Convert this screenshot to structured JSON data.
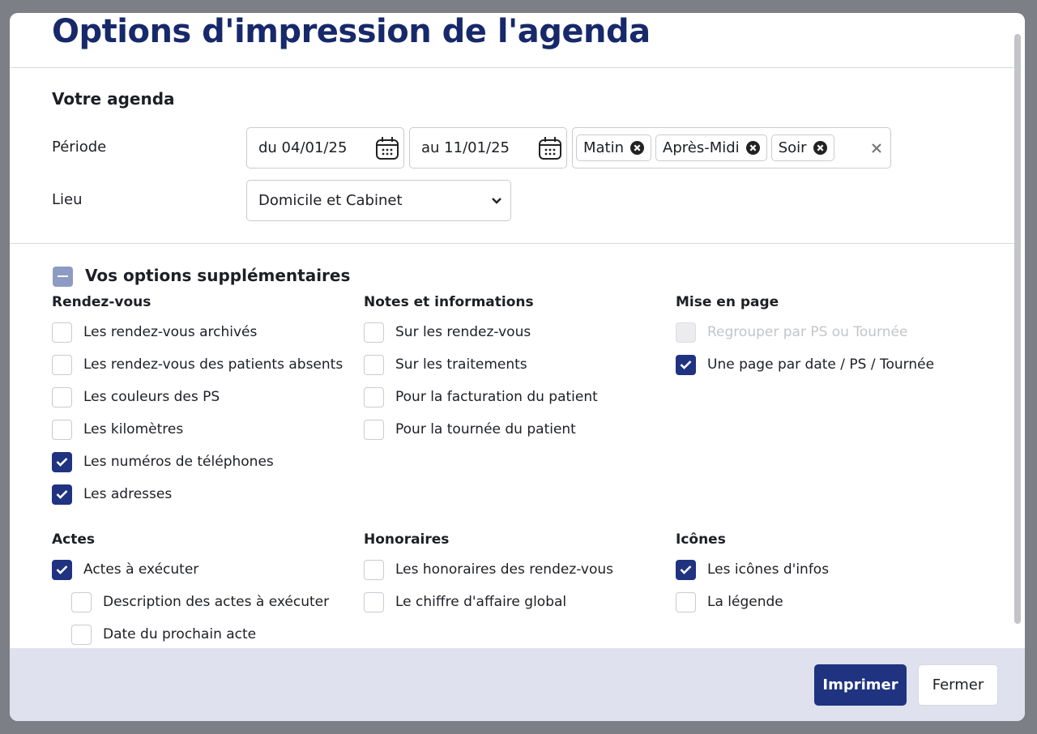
{
  "dialog": {
    "title": "Options d'impression de l'agenda"
  },
  "agenda": {
    "heading": "Votre agenda",
    "period_label": "Période",
    "date_from": "du 04/01/25",
    "date_to": "au 11/01/25",
    "slots": [
      "Matin",
      "Après-Midi",
      "Soir"
    ],
    "place_label": "Lieu",
    "place": "Domicile et Cabinet"
  },
  "options": {
    "heading": "Vos options supplémentaires",
    "groups": [
      {
        "title": "Rendez-vous",
        "items": [
          {
            "label": "Les rendez-vous archivés",
            "checked": false
          },
          {
            "label": "Les rendez-vous des patients absents",
            "checked": false
          },
          {
            "label": "Les couleurs des PS",
            "checked": false
          },
          {
            "label": "Les kilomètres",
            "checked": false
          },
          {
            "label": "Les numéros de téléphones",
            "checked": true
          },
          {
            "label": "Les adresses",
            "checked": true
          }
        ]
      },
      {
        "title": "Notes et informations",
        "items": [
          {
            "label": "Sur les rendez-vous",
            "checked": false
          },
          {
            "label": "Sur les traitements",
            "checked": false
          },
          {
            "label": "Pour la facturation du patient",
            "checked": false
          },
          {
            "label": "Pour la tournée du patient",
            "checked": false
          }
        ]
      },
      {
        "title": "Mise en page",
        "items": [
          {
            "label": "Regrouper par PS ou Tournée",
            "checked": false,
            "disabled": true
          },
          {
            "label": "Une page par date / PS / Tournée",
            "checked": true
          }
        ]
      },
      {
        "title": "Actes",
        "items": [
          {
            "label": "Actes à exécuter",
            "checked": true,
            "children": [
              {
                "label": "Description des actes à exécuter",
                "checked": false
              },
              {
                "label": "Date du prochain acte",
                "checked": false
              }
            ]
          }
        ]
      },
      {
        "title": "Honoraires",
        "items": [
          {
            "label": "Les honoraires des rendez-vous",
            "checked": false
          },
          {
            "label": "Le chiffre d'affaire global",
            "checked": false
          }
        ]
      },
      {
        "title": "Icônes",
        "items": [
          {
            "label": "Les icônes d'infos",
            "checked": true
          },
          {
            "label": "La légende",
            "checked": false
          }
        ]
      }
    ]
  },
  "buttons": {
    "print": "Imprimer",
    "close": "Fermer"
  }
}
